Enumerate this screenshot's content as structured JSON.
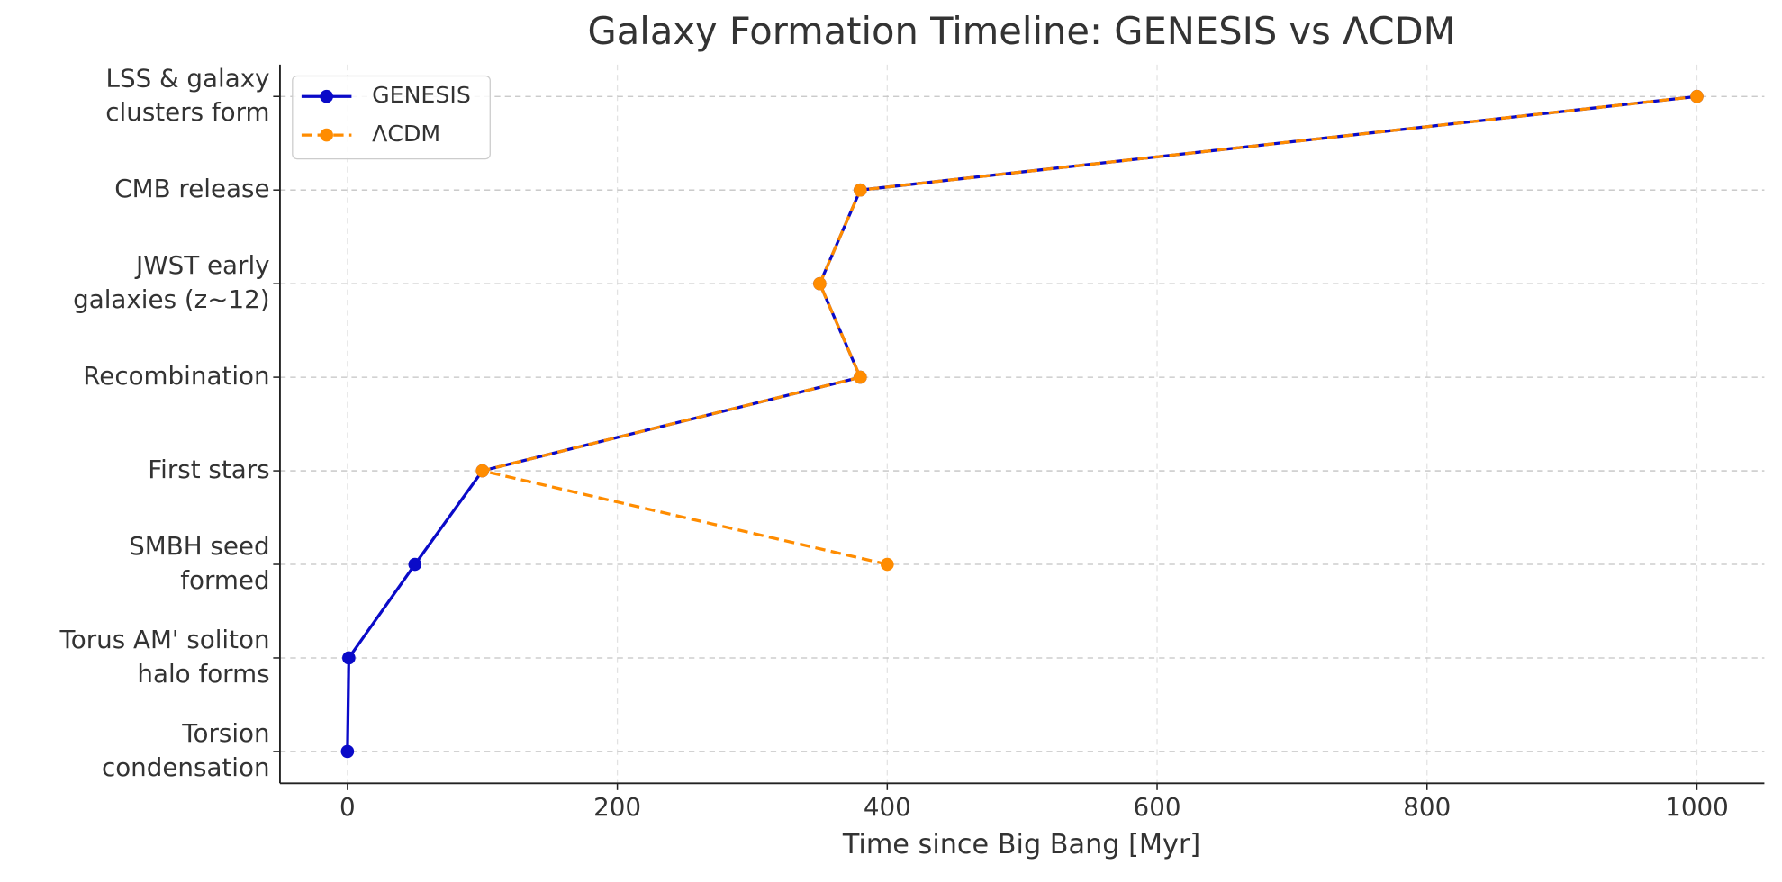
{
  "chart_data": {
    "type": "line",
    "title": "Galaxy Formation Timeline: GENESIS vs ΛCDM",
    "x_label": "Time since Big Bang [Myr]",
    "categories": [
      "Torsion\ncondensation",
      "Torus AM' soliton\nhalo forms",
      "SMBH seed\nformed",
      "First stars",
      "Recombination",
      "JWST early\ngalaxies (z~12)",
      "CMB release",
      "LSS & galaxy\nclusters form"
    ],
    "series": [
      {
        "name": "GENESIS",
        "color": "#0a0ac8",
        "dash": false,
        "values": [
          0,
          1,
          50,
          100,
          380,
          350,
          380,
          1000
        ]
      },
      {
        "name": "ΛCDM",
        "color": "#ff8c00",
        "dash": true,
        "values": [
          null,
          null,
          400,
          100,
          380,
          350,
          380,
          1000
        ]
      }
    ],
    "xlim": [
      -50,
      1050
    ],
    "xticks": [
      0,
      200,
      400,
      600,
      800,
      1000
    ],
    "grid": true,
    "legend": "upper left"
  }
}
